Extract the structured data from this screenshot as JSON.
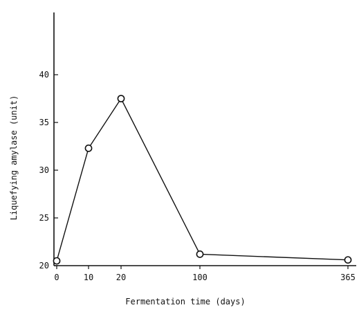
{
  "chart_data": {
    "type": "line",
    "title": "",
    "xlabel": "Fermentation time (days)",
    "ylabel": "Liquefying amylase (unit)",
    "x_tick_labels": [
      "0",
      "10",
      "20",
      "100",
      "365"
    ],
    "y_ticks": [
      20,
      25,
      30,
      35,
      40
    ],
    "y_tick_labels": [
      "20",
      "25",
      "30",
      "35",
      "40"
    ],
    "ylim": [
      20,
      41
    ],
    "x_scale": "non-linear (broken scale: 0, 10, 20, 100, 365)",
    "grid": false,
    "legend": "none",
    "series": [
      {
        "x": [
          0,
          10,
          20,
          100,
          365
        ],
        "values": [
          20.5,
          32.3,
          37.5,
          21.2,
          20.6
        ],
        "marker": "open-circle",
        "color": "#111111"
      }
    ]
  }
}
